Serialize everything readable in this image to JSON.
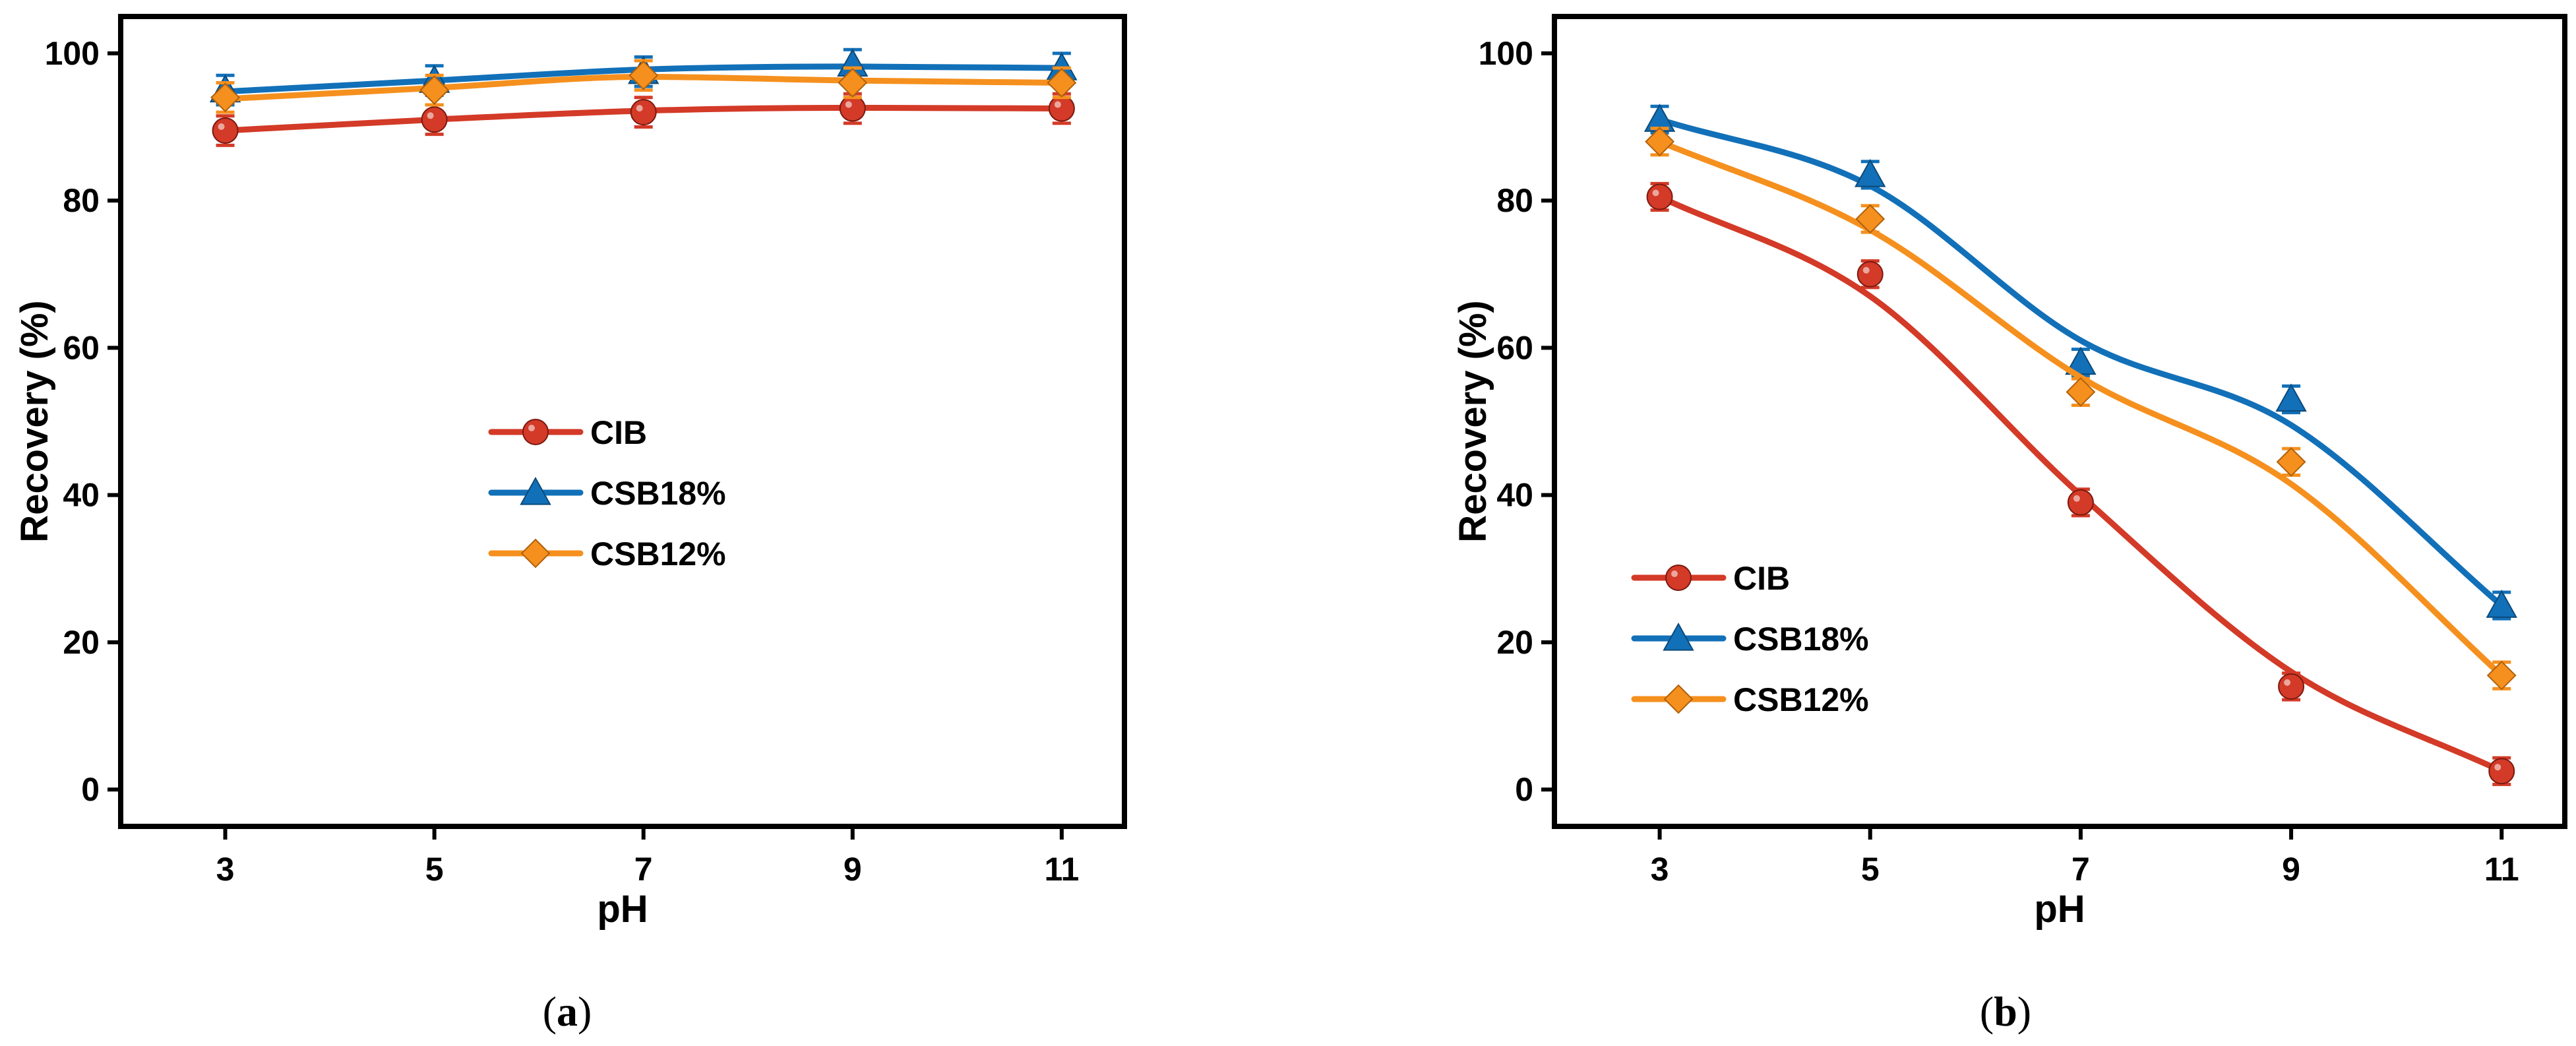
{
  "colors": {
    "CIB": "#d33a27",
    "CSB18%": "#1270b8",
    "CSB12%": "#f5901e"
  },
  "chart_data": [
    {
      "type": "line",
      "panel_label": "a",
      "xlabel": "pH",
      "ylabel": "Recovery (%)",
      "x": [
        3,
        5,
        7,
        9,
        11
      ],
      "xlim": [
        2,
        11.6
      ],
      "ylim": [
        -5,
        105
      ],
      "xticks": [
        3,
        5,
        7,
        9,
        11
      ],
      "yticks": [
        0,
        20,
        40,
        60,
        80,
        100
      ],
      "legend_position": "center",
      "series": [
        {
          "name": "CIB",
          "marker": "circle",
          "values": [
            89.5,
            91.0,
            92.0,
            92.5,
            92.5
          ],
          "errors": [
            2.0,
            2.0,
            2.0,
            2.0,
            2.0
          ],
          "fit": [
            89.5,
            91.0,
            92.2,
            92.6,
            92.5
          ]
        },
        {
          "name": "CSB18%",
          "marker": "triangle",
          "values": [
            95.0,
            96.3,
            97.5,
            98.5,
            98.0
          ],
          "errors": [
            2.0,
            2.0,
            2.0,
            2.0,
            2.0
          ],
          "fit": [
            94.8,
            96.3,
            97.8,
            98.2,
            98.0
          ]
        },
        {
          "name": "CSB12%",
          "marker": "diamond",
          "values": [
            94.0,
            95.0,
            97.0,
            96.0,
            96.0
          ],
          "errors": [
            2.0,
            2.0,
            2.0,
            2.0,
            2.0
          ],
          "fit": [
            93.8,
            95.3,
            96.8,
            96.3,
            96.0
          ]
        }
      ]
    },
    {
      "type": "line",
      "panel_label": "b",
      "xlabel": "pH",
      "ylabel": "Recovery (%)",
      "x": [
        3,
        5,
        7,
        9,
        11
      ],
      "xlim": [
        2,
        11.6
      ],
      "ylim": [
        -5,
        105
      ],
      "xticks": [
        3,
        5,
        7,
        9,
        11
      ],
      "yticks": [
        0,
        20,
        40,
        60,
        80,
        100
      ],
      "legend_position": "lower-left",
      "series": [
        {
          "name": "CIB",
          "marker": "circle",
          "values": [
            80.5,
            70.0,
            39.0,
            14.0,
            2.5
          ],
          "errors": [
            1.8,
            1.8,
            1.8,
            1.8,
            1.8
          ],
          "fit": [
            80.5,
            67.0,
            40.0,
            16.0,
            2.5
          ]
        },
        {
          "name": "CSB18%",
          "marker": "triangle",
          "values": [
            91.0,
            83.5,
            58.0,
            53.0,
            25.0
          ],
          "errors": [
            1.8,
            1.8,
            1.8,
            1.8,
            1.8
          ],
          "fit": [
            91.0,
            82.0,
            61.0,
            49.5,
            25.0
          ]
        },
        {
          "name": "CSB12%",
          "marker": "diamond",
          "values": [
            88.0,
            77.5,
            54.0,
            44.5,
            15.5
          ],
          "errors": [
            1.8,
            1.8,
            1.8,
            1.8,
            1.8
          ],
          "fit": [
            88.0,
            76.0,
            56.0,
            41.5,
            15.5
          ]
        }
      ]
    }
  ]
}
